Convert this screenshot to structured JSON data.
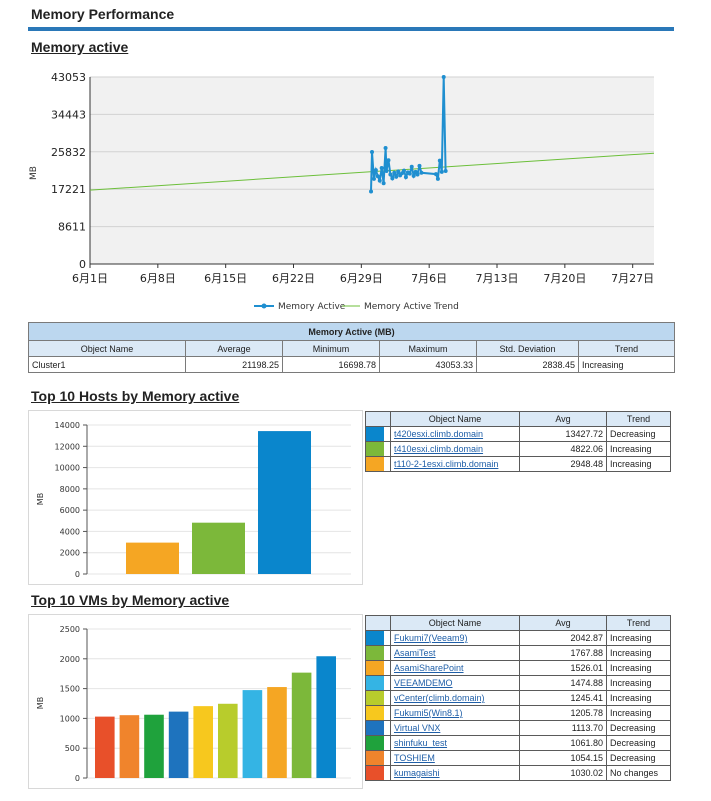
{
  "page_title": "Memory Performance",
  "colors": {
    "accent": "#2a78b8",
    "series": "#1f8fd0",
    "trend": "#6cbf3a",
    "header_bg": "#bcd7ef"
  },
  "sections": {
    "memory_active": "Memory active",
    "top_hosts": "Top 10 Hosts by Memory active",
    "top_vms": "Top 10 VMs by Memory active"
  },
  "chart_data": [
    {
      "type": "line",
      "ylabel": "MB",
      "yticks": [
        "0",
        "8611",
        "17221",
        "25832",
        "34443",
        "43053"
      ],
      "ylim": [
        0,
        43053
      ],
      "xticks": [
        "6月1日",
        "6月8日",
        "6月15日",
        "6月22日",
        "6月29日",
        "7月6日",
        "7月13日",
        "7月20日",
        "7月27日"
      ],
      "legend": [
        "Memory Active",
        "Memory Active Trend"
      ],
      "legend_position": "bottom",
      "grid": true,
      "series": [
        {
          "name": "Memory Active",
          "x_day": [
            29.0,
            29.1,
            29.3,
            29.5,
            29.7,
            29.9,
            30.1,
            30.3,
            30.5,
            30.6,
            30.8,
            31.0,
            31.2,
            31.4,
            31.6,
            31.8,
            32.0,
            32.2,
            32.4,
            32.6,
            32.8,
            33.0,
            33.2,
            33.4,
            33.6,
            33.8,
            34.0,
            34.2,
            35.7,
            35.9,
            36.1,
            36.3,
            36.5,
            36.7
          ],
          "values": [
            16700,
            25800,
            19600,
            21600,
            20200,
            19200,
            22100,
            18600,
            26700,
            21400,
            23900,
            20600,
            19700,
            21000,
            20100,
            21300,
            20400,
            20900,
            21500,
            20000,
            21100,
            20800,
            22400,
            20300,
            21200,
            20600,
            22600,
            21000,
            20700,
            19600,
            23800,
            21200,
            43053,
            21400
          ]
        },
        {
          "name": "Memory Active Trend",
          "x_day": [
            0,
            58.2
          ],
          "values": [
            17000,
            25500
          ]
        }
      ]
    },
    {
      "type": "bar",
      "ylabel": "MB",
      "yticks": [
        "0",
        "2000",
        "4000",
        "6000",
        "8000",
        "10000",
        "12000",
        "14000"
      ],
      "ylim": [
        0,
        14000
      ],
      "grid": true,
      "categories": [
        "t110-2-1esxi.climb.domain",
        "t410esxi.climb.domain",
        "t420esxi.climb.domain"
      ],
      "values": [
        2948.48,
        4822.06,
        13427.72
      ],
      "colors": [
        "#f5a623",
        "#7cb83a",
        "#0a86cc"
      ]
    },
    {
      "type": "bar",
      "ylabel": "MB",
      "yticks": [
        "0",
        "500",
        "1000",
        "1500",
        "2000",
        "2500"
      ],
      "ylim": [
        0,
        2500
      ],
      "grid": true,
      "categories": [
        "kumagaishi",
        "TOSHIEM",
        "shinfuku_test",
        "Virtual VNX",
        "Fukumi5(Win8.1)",
        "vCenter(climb.domain)",
        "VEEAMDEMO",
        "AsamiSharePoint",
        "AsamiTest",
        "Fukumi7(Veeam9)"
      ],
      "values": [
        1030.02,
        1054.15,
        1061.8,
        1113.7,
        1205.78,
        1245.41,
        1474.88,
        1526.01,
        1767.88,
        2042.87
      ],
      "colors": [
        "#e8502a",
        "#f0842c",
        "#1fa23c",
        "#1e73be",
        "#f7c81e",
        "#b8cc2c",
        "#34b4e4",
        "#f5a623",
        "#7cb83a",
        "#0a86cc"
      ]
    }
  ],
  "stats_table": {
    "caption": "Memory Active (MB)",
    "headers": [
      "Object Name",
      "Average",
      "Minimum",
      "Maximum",
      "Std. Deviation",
      "Trend"
    ],
    "row": [
      "Cluster1",
      "21198.25",
      "16698.78",
      "43053.33",
      "2838.45",
      "Increasing"
    ]
  },
  "hosts_table": {
    "headers": [
      "Object Name",
      "Avg",
      "Trend"
    ],
    "rows": [
      {
        "color": "#0a86cc",
        "name": "t420esxi.climb.domain",
        "avg": "13427.72",
        "trend": "Decreasing"
      },
      {
        "color": "#7cb83a",
        "name": "t410esxi.climb.domain",
        "avg": "4822.06",
        "trend": "Increasing"
      },
      {
        "color": "#f5a623",
        "name": "t110-2-1esxi.climb.domain",
        "avg": "2948.48",
        "trend": "Increasing"
      }
    ]
  },
  "vms_table": {
    "headers": [
      "Object Name",
      "Avg",
      "Trend"
    ],
    "rows": [
      {
        "color": "#0a86cc",
        "name": "Fukumi7(Veeam9)",
        "avg": "2042.87",
        "trend": "Increasing"
      },
      {
        "color": "#7cb83a",
        "name": "AsamiTest",
        "avg": "1767.88",
        "trend": "Increasing"
      },
      {
        "color": "#f5a623",
        "name": "AsamiSharePoint",
        "avg": "1526.01",
        "trend": "Increasing"
      },
      {
        "color": "#34b4e4",
        "name": "VEEAMDEMO",
        "avg": "1474.88",
        "trend": "Increasing"
      },
      {
        "color": "#b8cc2c",
        "name": "vCenter(climb.domain)",
        "avg": "1245.41",
        "trend": "Increasing"
      },
      {
        "color": "#f7c81e",
        "name": "Fukumi5(Win8.1)",
        "avg": "1205.78",
        "trend": "Increasing"
      },
      {
        "color": "#1e73be",
        "name": "Virtual VNX",
        "avg": "1113.70",
        "trend": "Decreasing"
      },
      {
        "color": "#1fa23c",
        "name": "shinfuku_test",
        "avg": "1061.80",
        "trend": "Decreasing"
      },
      {
        "color": "#f0842c",
        "name": "TOSHIEM",
        "avg": "1054.15",
        "trend": "Decreasing"
      },
      {
        "color": "#e8502a",
        "name": "kumagaishi",
        "avg": "1030.02",
        "trend": "No changes"
      }
    ]
  }
}
